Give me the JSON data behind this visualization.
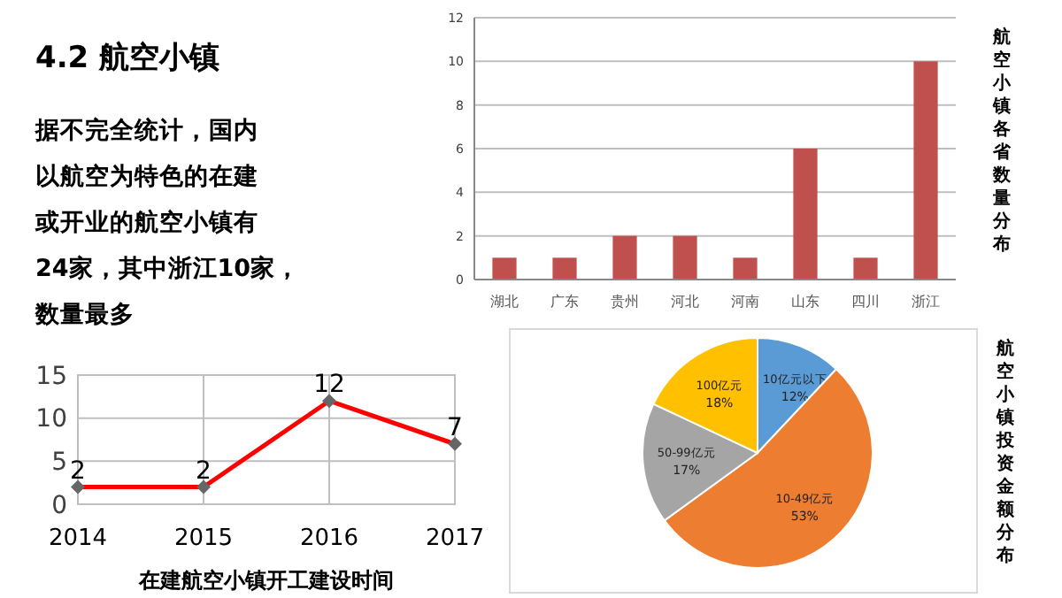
{
  "chart_data": [
    {
      "type": "other",
      "title": "4.2  航空小镇",
      "annotations": [
        "据不完全统计，国内",
        "以航空为特色的在建",
        "或开业的航空小镇有",
        "24家，其中浙江10家，",
        "数量最多"
      ]
    },
    {
      "type": "bar",
      "title": "航空小镇各省数量分布",
      "categories": [
        "湖北",
        "广东",
        "贵州",
        "河北",
        "河南",
        "山东",
        "四川",
        "浙江"
      ],
      "values": [
        1,
        1,
        2,
        2,
        1,
        6,
        1,
        10
      ],
      "color": "#c0504d",
      "ylim": [
        0,
        12
      ],
      "yticks": [
        0,
        2,
        4,
        6,
        8,
        10,
        12
      ],
      "grid": "y"
    },
    {
      "type": "line",
      "xlabel": "在建航空小镇开工建设时间",
      "categories": [
        "2014",
        "2015",
        "2016",
        "2017"
      ],
      "values": [
        2,
        2,
        12,
        7
      ],
      "color": "#ff0000",
      "marker": "diamond",
      "data_labels": true,
      "ylim": [
        0,
        15
      ],
      "yticks": [
        0,
        5,
        10,
        15
      ],
      "grid": true
    },
    {
      "type": "pie",
      "title": "航空小镇投资金额分布",
      "categories": [
        "10亿元以下",
        "10-49亿元",
        "50-99亿元",
        "100亿元"
      ],
      "values": [
        12,
        53,
        17,
        18
      ],
      "value_labels": [
        "12%",
        "53%",
        "17%",
        "18%"
      ],
      "colors": [
        "#5b9bd5",
        "#ed7d31",
        "#a5a5a5",
        "#ffc000"
      ],
      "data_labels": true
    }
  ]
}
